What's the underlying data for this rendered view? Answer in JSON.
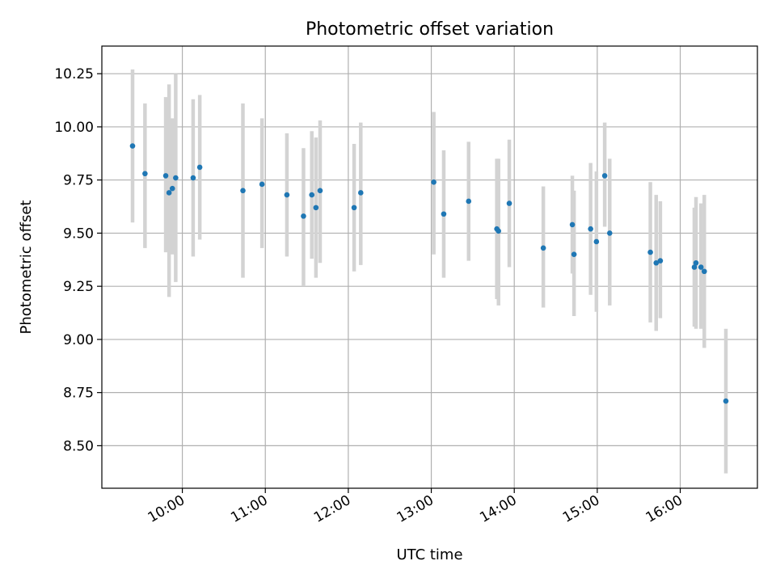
{
  "chart_data": {
    "type": "scatter",
    "title": "Photometric offset variation",
    "xlabel": "UTC time",
    "ylabel": "Photometric offset",
    "grid": true,
    "xlim_hours": [
      9.03,
      16.93
    ],
    "ylim": [
      8.3,
      10.38
    ],
    "x_ticks": [
      {
        "value": 10,
        "label": "10:00"
      },
      {
        "value": 11,
        "label": "11:00"
      },
      {
        "value": 12,
        "label": "12:00"
      },
      {
        "value": 13,
        "label": "13:00"
      },
      {
        "value": 14,
        "label": "14:00"
      },
      {
        "value": 15,
        "label": "15:00"
      },
      {
        "value": 16,
        "label": "16:00"
      }
    ],
    "y_ticks": [
      {
        "value": 8.5,
        "label": "8.50"
      },
      {
        "value": 8.75,
        "label": "8.75"
      },
      {
        "value": 9.0,
        "label": "9.00"
      },
      {
        "value": 9.25,
        "label": "9.25"
      },
      {
        "value": 9.5,
        "label": "9.50"
      },
      {
        "value": 9.75,
        "label": "9.75"
      },
      {
        "value": 10.0,
        "label": "10.00"
      },
      {
        "value": 10.25,
        "label": "10.25"
      }
    ],
    "colors": {
      "point": "#1f77b4",
      "errorbar": "#d3d3d3",
      "grid": "#b0b0b0"
    },
    "points": [
      {
        "t": 9.4,
        "y": 9.91,
        "lo": 9.55,
        "hi": 10.27
      },
      {
        "t": 9.55,
        "y": 9.78,
        "lo": 9.43,
        "hi": 10.11
      },
      {
        "t": 9.8,
        "y": 9.77,
        "lo": 9.41,
        "hi": 10.14
      },
      {
        "t": 9.84,
        "y": 9.69,
        "lo": 9.2,
        "hi": 10.2
      },
      {
        "t": 9.88,
        "y": 9.71,
        "lo": 9.4,
        "hi": 10.04
      },
      {
        "t": 9.92,
        "y": 9.76,
        "lo": 9.27,
        "hi": 10.25
      },
      {
        "t": 10.13,
        "y": 9.76,
        "lo": 9.39,
        "hi": 10.13
      },
      {
        "t": 10.21,
        "y": 9.81,
        "lo": 9.47,
        "hi": 10.15
      },
      {
        "t": 10.73,
        "y": 9.7,
        "lo": 9.29,
        "hi": 10.11
      },
      {
        "t": 10.96,
        "y": 9.73,
        "lo": 9.43,
        "hi": 10.04
      },
      {
        "t": 11.26,
        "y": 9.68,
        "lo": 9.39,
        "hi": 9.97
      },
      {
        "t": 11.46,
        "y": 9.58,
        "lo": 9.25,
        "hi": 9.9
      },
      {
        "t": 11.56,
        "y": 9.68,
        "lo": 9.38,
        "hi": 9.98
      },
      {
        "t": 11.61,
        "y": 9.62,
        "lo": 9.29,
        "hi": 9.95
      },
      {
        "t": 11.66,
        "y": 9.7,
        "lo": 9.36,
        "hi": 10.03
      },
      {
        "t": 12.07,
        "y": 9.62,
        "lo": 9.32,
        "hi": 9.92
      },
      {
        "t": 12.15,
        "y": 9.69,
        "lo": 9.35,
        "hi": 10.02
      },
      {
        "t": 13.03,
        "y": 9.74,
        "lo": 9.4,
        "hi": 10.07
      },
      {
        "t": 13.15,
        "y": 9.59,
        "lo": 9.29,
        "hi": 9.89
      },
      {
        "t": 13.45,
        "y": 9.65,
        "lo": 9.37,
        "hi": 9.93
      },
      {
        "t": 13.79,
        "y": 9.52,
        "lo": 9.19,
        "hi": 9.85
      },
      {
        "t": 13.81,
        "y": 9.51,
        "lo": 9.16,
        "hi": 9.85
      },
      {
        "t": 13.94,
        "y": 9.64,
        "lo": 9.34,
        "hi": 9.94
      },
      {
        "t": 14.35,
        "y": 9.43,
        "lo": 9.15,
        "hi": 9.72
      },
      {
        "t": 14.7,
        "y": 9.54,
        "lo": 9.31,
        "hi": 9.77
      },
      {
        "t": 14.72,
        "y": 9.4,
        "lo": 9.11,
        "hi": 9.7
      },
      {
        "t": 14.92,
        "y": 9.52,
        "lo": 9.21,
        "hi": 9.83
      },
      {
        "t": 14.99,
        "y": 9.46,
        "lo": 9.13,
        "hi": 9.79
      },
      {
        "t": 15.09,
        "y": 9.77,
        "lo": 9.53,
        "hi": 10.02
      },
      {
        "t": 15.15,
        "y": 9.5,
        "lo": 9.16,
        "hi": 9.85
      },
      {
        "t": 15.64,
        "y": 9.41,
        "lo": 9.08,
        "hi": 9.74
      },
      {
        "t": 15.71,
        "y": 9.36,
        "lo": 9.04,
        "hi": 9.68
      },
      {
        "t": 15.76,
        "y": 9.37,
        "lo": 9.1,
        "hi": 9.65
      },
      {
        "t": 16.17,
        "y": 9.34,
        "lo": 9.06,
        "hi": 9.62
      },
      {
        "t": 16.19,
        "y": 9.36,
        "lo": 9.05,
        "hi": 9.67
      },
      {
        "t": 16.25,
        "y": 9.34,
        "lo": 9.05,
        "hi": 9.64
      },
      {
        "t": 16.29,
        "y": 9.32,
        "lo": 8.96,
        "hi": 9.68
      },
      {
        "t": 16.55,
        "y": 8.71,
        "lo": 8.37,
        "hi": 9.05
      }
    ]
  }
}
